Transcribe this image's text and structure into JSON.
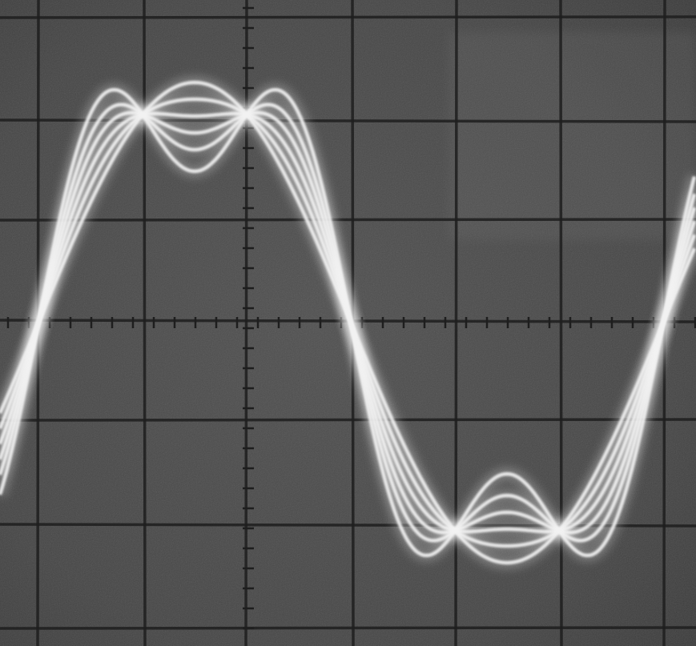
{
  "photo": {
    "subject": "oscilloscope-screen",
    "graticule": {
      "divisions_x": 7,
      "divisions_y": 6,
      "center_axis_ticks": true
    },
    "traces": [
      {
        "name": "trace-1",
        "harmonic_amplitude": 0.0
      },
      {
        "name": "trace-2",
        "harmonic_amplitude": 0.07
      },
      {
        "name": "trace-3",
        "harmonic_amplitude": 0.14
      },
      {
        "name": "trace-4",
        "harmonic_amplitude": 0.21
      },
      {
        "name": "trace-5",
        "harmonic_amplitude": 0.28
      },
      {
        "name": "trace-6",
        "harmonic_amplitude": 0.37
      }
    ],
    "colors": {
      "screen": "#4a4a4a",
      "grid": "#1e1e1e",
      "trace": "#f2f2f2",
      "glow": "#ffffff"
    }
  }
}
